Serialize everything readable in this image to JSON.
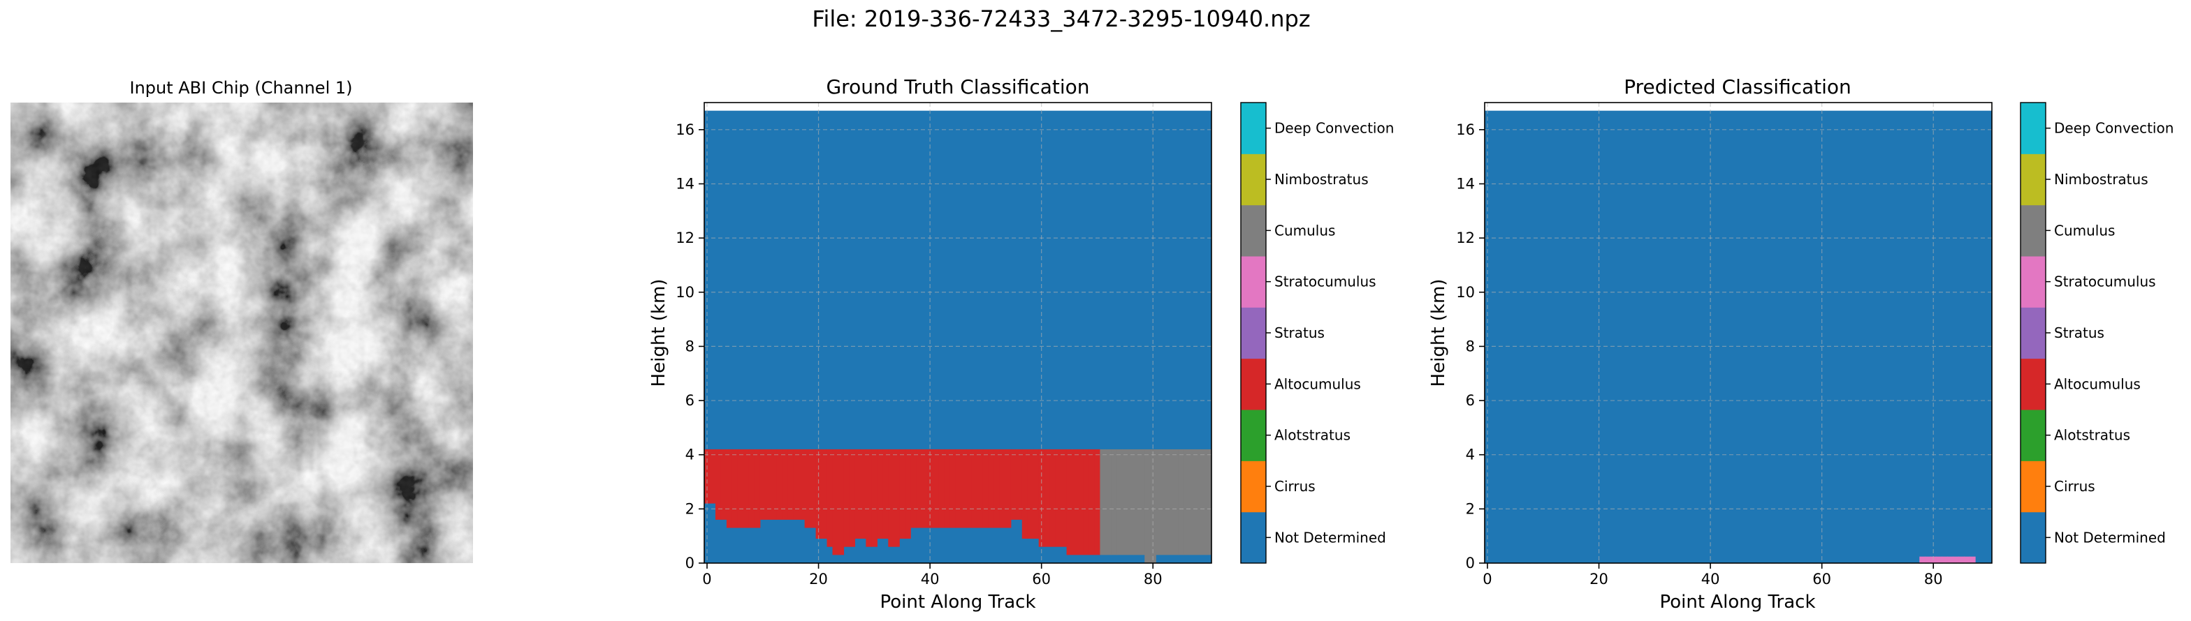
{
  "figure": {
    "suptitle": "File: 2019-336-72433_3472-3295-10940.npz"
  },
  "input_panel": {
    "title": "Input ABI Chip (Channel 1)"
  },
  "chart_data": [
    {
      "type": "heatmap",
      "title": "Ground Truth Classification",
      "xlabel": "Point Along Track",
      "ylabel": "Height (km)",
      "xlim": [
        -0.5,
        90.5
      ],
      "ylim": [
        0,
        17
      ],
      "data_top_km": 16.7,
      "xticks": [
        0,
        20,
        40,
        60,
        80
      ],
      "yticks": [
        0,
        2,
        4,
        6,
        8,
        10,
        12,
        14,
        16
      ],
      "grid": true,
      "background_class": "Not Determined",
      "regions": [
        {
          "class": "Altocumulus",
          "x_start": 0,
          "x_end": 71,
          "top_km": 4.2,
          "bottom_km": [
            2.2,
            2.2,
            1.6,
            1.6,
            1.3,
            1.3,
            1.3,
            1.3,
            1.3,
            1.3,
            1.6,
            1.6,
            1.6,
            1.6,
            1.6,
            1.6,
            1.6,
            1.6,
            1.3,
            1.3,
            0.9,
            0.9,
            0.6,
            0.3,
            0.3,
            0.6,
            0.6,
            0.9,
            0.9,
            0.6,
            0.6,
            0.9,
            0.9,
            0.6,
            0.6,
            0.9,
            0.9,
            1.3,
            1.3,
            1.3,
            1.3,
            1.3,
            1.3,
            1.3,
            1.3,
            1.3,
            1.3,
            1.3,
            1.3,
            1.3,
            1.3,
            1.3,
            1.3,
            1.3,
            1.3,
            1.6,
            1.6,
            0.9,
            0.9,
            0.9,
            0.6,
            0.6,
            0.6,
            0.6,
            0.6,
            0.3,
            0.3,
            0.3,
            0.3,
            0.3,
            0.3
          ]
        },
        {
          "class": "Cumulus",
          "x_start": 71,
          "x_end": 91,
          "top_km": 4.2,
          "bottom_km": [
            0.3,
            0.3,
            0.3,
            0.3,
            0.3,
            0.3,
            0.3,
            0.3,
            0.0,
            0.0,
            0.3,
            0.3,
            0.3,
            0.3,
            0.3,
            0.3,
            0.3,
            0.3,
            0.3,
            0.3
          ]
        }
      ],
      "colorbar_labels": [
        "Not Determined",
        "Cirrus",
        "Alotstratus",
        "Altocumulus",
        "Stratus",
        "Stratocumulus",
        "Cumulus",
        "Nimbostratus",
        "Deep Convection"
      ]
    },
    {
      "type": "heatmap",
      "title": "Predicted Classification",
      "xlabel": "Point Along Track",
      "ylabel": "Height (km)",
      "xlim": [
        -0.5,
        90.5
      ],
      "ylim": [
        0,
        17
      ],
      "data_top_km": 16.7,
      "xticks": [
        0,
        20,
        40,
        60,
        80
      ],
      "yticks": [
        0,
        2,
        4,
        6,
        8,
        10,
        12,
        14,
        16
      ],
      "grid": true,
      "background_class": "Not Determined",
      "regions": [
        {
          "class": "Stratocumulus",
          "x_start": 78,
          "x_end": 88,
          "top_km": 0.24,
          "bottom_km": 0.0
        }
      ],
      "colorbar_labels": [
        "Not Determined",
        "Cirrus",
        "Alotstratus",
        "Altocumulus",
        "Stratus",
        "Stratocumulus",
        "Cumulus",
        "Nimbostratus",
        "Deep Convection"
      ]
    }
  ],
  "class_colors": {
    "Not Determined": "#1f77b4",
    "Cirrus": "#ff7f0e",
    "Alotstratus": "#2ca02c",
    "Altocumulus": "#d62728",
    "Stratus": "#9467bd",
    "Stratocumulus": "#e377c2",
    "Cumulus": "#7f7f7f",
    "Nimbostratus": "#bcbd22",
    "Deep Convection": "#17becf"
  }
}
